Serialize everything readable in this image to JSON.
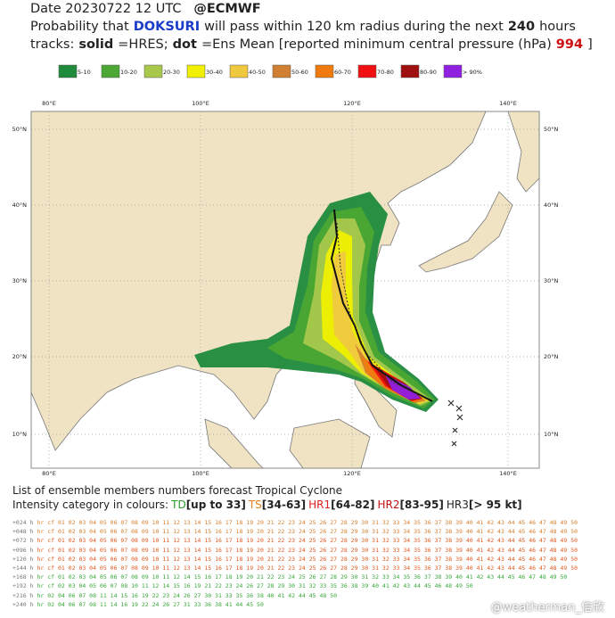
{
  "header": {
    "date": "Date 20230722 12 UTC",
    "source": "@ECMWF",
    "line2": [
      {
        "text": "Probability that",
        "style": "plain"
      },
      {
        "text": "DOKSURI",
        "style": "blue"
      },
      {
        "text": "will pass within 120 km radius during the next",
        "style": "plain"
      },
      {
        "text": "240",
        "style": "bold"
      },
      {
        "text": "hours",
        "style": "plain"
      }
    ],
    "line3": [
      {
        "text": "tracks:",
        "style": "plain"
      },
      {
        "text": "solid",
        "style": "bold"
      },
      {
        "text": "=HRES;",
        "style": "plain"
      },
      {
        "text": "dot",
        "style": "bold"
      },
      {
        "text": "=Ens Mean [reported minimum central pressure (hPa)",
        "style": "plain"
      },
      {
        "text": "994",
        "style": "red"
      },
      {
        "text": "]",
        "style": "plain"
      }
    ]
  },
  "legend": [
    {
      "label": "5-10",
      "color": "#1e8a3c"
    },
    {
      "label": "10-20",
      "color": "#4ca832"
    },
    {
      "label": "20-30",
      "color": "#a8c84c"
    },
    {
      "label": "30-40",
      "color": "#f0f000"
    },
    {
      "label": "40-50",
      "color": "#f0c840"
    },
    {
      "label": "50-60",
      "color": "#d08030"
    },
    {
      "label": "60-70",
      "color": "#f07a10"
    },
    {
      "label": "70-80",
      "color": "#f01010"
    },
    {
      "label": "80-90",
      "color": "#a01010"
    },
    {
      "label": "> 90%",
      "color": "#9020e0"
    }
  ],
  "map": {
    "lon_labels": [
      "80°E",
      "100°E",
      "120°E",
      "140°E"
    ],
    "lat_labels": [
      "50°N",
      "40°N",
      "30°N",
      "20°N",
      "10°N"
    ]
  },
  "footer": {
    "title": "List of ensemble members numbers forecast Tropical Cyclone",
    "intensity": [
      {
        "text": "Intensity category in colours:",
        "color": "#222"
      },
      {
        "text": "TD",
        "color": "#2a9a2a"
      },
      {
        "text": "[up to 33]",
        "color": "#222"
      },
      {
        "text": "TS",
        "color": "#e08020"
      },
      {
        "text": "[34-63]",
        "color": "#222"
      },
      {
        "text": "HR1",
        "color": "#e02020"
      },
      {
        "text": "[64-82]",
        "color": "#222"
      },
      {
        "text": "HR2",
        "color": "#c01010"
      },
      {
        "text": "[83-95]",
        "color": "#222"
      },
      {
        "text": "HR3",
        "color": "#222"
      },
      {
        "text": "[> 95 kt]",
        "color": "#222"
      }
    ],
    "rows": [
      {
        "label": "+024 h",
        "members": "hr cf 01 02 03 04 05 06 07 08 09 10 11 12 13 14 15 16 17 18 19 20 21 22 23 24 25 26 27 28 29 30 31 32 33 34 35 36 37 38 39 40 41 42 43 44 45 46 47 48 49 50"
      },
      {
        "label": "+048 h",
        "members": "hr cf 01 02 03 04 05 06 07 08 09 10 11 12 13 14 15 16 17 18 19 20 21 22 23 24 25 26 27 28 29 30 31 32 33 34 35 36 37 38 39 40 41 42 43 44 45 46 47 48 49 50"
      },
      {
        "label": "+072 h",
        "members": "hr cf 01 02 03 04 05 06 07 08 09 10 11 12 13 14 15 16 17 18 19 20 21 22 23 24 25 26 27 28 29 30 31 32 33 34 35 36 37 38 39 40 41 42 43 44 45 46 47 48 49 50"
      },
      {
        "label": "+096 h",
        "members": "hr cf 01 02 03 04 05 06 07 08 09 10 11 12 13 14 15 16 17 18 19 20 21 22 23 24 25 26 27 28 29 30 31 32 33 34 35 36 37 38 39 40 41 42 43 44 45 46 47 48 49 50"
      },
      {
        "label": "+120 h",
        "members": "hr cf 01 02 03 04 05 06 07 08 09 10 11 12 13 14 15 16 17 18 19 20 21 22 23 24 25 26 27 28 29 30 31 32 33 34 35 36 37 38 39 40 41 42 43 44 45 46 47 48 49 50"
      },
      {
        "label": "+144 h",
        "members": "hr cf 01 02 03 04 05 06 07 08 09 10 11 12 13 14 15 16 17 18 19 20 21 22 23 24 25 26 27 28 29 30 31 32 33 34 35 36 37 38 39 40 41 42 43 44 45 46 47 48 49 50"
      },
      {
        "label": "+168 h",
        "members": "hr cf 01 02 03 04 05 06 07 08 09 10 11 12 14 15 16 17 18 19 20 21 22 23 24 25 26 27 28 29 30 31 32 33 34 35 36 37 38 39 40 41 42 43 44 45 46 47 48 49 50"
      },
      {
        "label": "+192 h",
        "members": "hr cf 02 03 04 05 06 07 08 10 11 12 14 15 16 19 21 22 23 24 26 27 28 29 30 31 32 33 35 36 38 39 40 41 42 43 44 45 46 48 49 50"
      },
      {
        "label": "+216 h",
        "members": "hr 02 04 06 07 08 11 14 15 16 19 22 23 24 26 27 30 31 33 35 36 38 40 41 42 44 45 48 50"
      },
      {
        "label": "+240 h",
        "members": "hr 02 04 06 07 08 11 14 16 19 22 24 26 27 31 33 36 38 41 44 45 50"
      }
    ]
  },
  "watermark": "@weatherman_信欣"
}
